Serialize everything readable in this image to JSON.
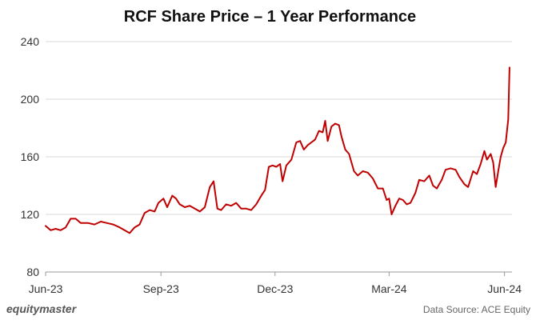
{
  "chart_data": {
    "type": "line",
    "title": "RCF Share Price – 1 Year Performance",
    "xlabel": "",
    "ylabel": "",
    "ylim": [
      80,
      240
    ],
    "yticks": [
      80,
      120,
      160,
      200,
      240
    ],
    "xlim": [
      "2023-06-01",
      "2024-06-07"
    ],
    "xticks": [
      {
        "label": "Jun-23",
        "date": "2023-06-01"
      },
      {
        "label": "Sep-23",
        "date": "2023-09-01"
      },
      {
        "label": "Dec-23",
        "date": "2023-12-01"
      },
      {
        "label": "Mar-24",
        "date": "2024-03-01"
      },
      {
        "label": "Jun-24",
        "date": "2024-06-01"
      }
    ],
    "grid": true,
    "line_color": "#c00000",
    "series": [
      {
        "points": [
          [
            "2023-06-01",
            112
          ],
          [
            "2023-06-05",
            109
          ],
          [
            "2023-06-09",
            110
          ],
          [
            "2023-06-13",
            109
          ],
          [
            "2023-06-17",
            111
          ],
          [
            "2023-06-21",
            117
          ],
          [
            "2023-06-25",
            117
          ],
          [
            "2023-06-29",
            114
          ],
          [
            "2023-07-05",
            114
          ],
          [
            "2023-07-10",
            113
          ],
          [
            "2023-07-15",
            115
          ],
          [
            "2023-07-20",
            114
          ],
          [
            "2023-07-25",
            113
          ],
          [
            "2023-07-30",
            111
          ],
          [
            "2023-08-03",
            109
          ],
          [
            "2023-08-07",
            107
          ],
          [
            "2023-08-11",
            111
          ],
          [
            "2023-08-15",
            113
          ],
          [
            "2023-08-19",
            121
          ],
          [
            "2023-08-23",
            123
          ],
          [
            "2023-08-27",
            122
          ],
          [
            "2023-08-30",
            128
          ],
          [
            "2023-09-03",
            131
          ],
          [
            "2023-09-06",
            125
          ],
          [
            "2023-09-10",
            133
          ],
          [
            "2023-09-13",
            131
          ],
          [
            "2023-09-16",
            127
          ],
          [
            "2023-09-20",
            125
          ],
          [
            "2023-09-24",
            126
          ],
          [
            "2023-09-28",
            124
          ],
          [
            "2023-10-02",
            122
          ],
          [
            "2023-10-06",
            125
          ],
          [
            "2023-10-10",
            139
          ],
          [
            "2023-10-13",
            143
          ],
          [
            "2023-10-16",
            124
          ],
          [
            "2023-10-19",
            123
          ],
          [
            "2023-10-23",
            127
          ],
          [
            "2023-10-27",
            126
          ],
          [
            "2023-10-31",
            128
          ],
          [
            "2023-11-04",
            124
          ],
          [
            "2023-11-08",
            124
          ],
          [
            "2023-11-12",
            123
          ],
          [
            "2023-11-16",
            127
          ],
          [
            "2023-11-20",
            133
          ],
          [
            "2023-11-23",
            137
          ],
          [
            "2023-11-26",
            153
          ],
          [
            "2023-11-29",
            154
          ],
          [
            "2023-12-02",
            153
          ],
          [
            "2023-12-05",
            155
          ],
          [
            "2023-12-07",
            143
          ],
          [
            "2023-12-10",
            154
          ],
          [
            "2023-12-14",
            158
          ],
          [
            "2023-12-18",
            170
          ],
          [
            "2023-12-21",
            171
          ],
          [
            "2023-12-24",
            165
          ],
          [
            "2023-12-27",
            168
          ],
          [
            "2023-12-30",
            170
          ],
          [
            "2024-01-02",
            172
          ],
          [
            "2024-01-05",
            178
          ],
          [
            "2024-01-08",
            177
          ],
          [
            "2024-01-10",
            185
          ],
          [
            "2024-01-12",
            171
          ],
          [
            "2024-01-15",
            181
          ],
          [
            "2024-01-18",
            183
          ],
          [
            "2024-01-21",
            182
          ],
          [
            "2024-01-23",
            174
          ],
          [
            "2024-01-26",
            165
          ],
          [
            "2024-01-29",
            162
          ],
          [
            "2024-02-02",
            150
          ],
          [
            "2024-02-05",
            147
          ],
          [
            "2024-02-09",
            150
          ],
          [
            "2024-02-13",
            149
          ],
          [
            "2024-02-17",
            145
          ],
          [
            "2024-02-21",
            138
          ],
          [
            "2024-02-25",
            138
          ],
          [
            "2024-02-28",
            130
          ],
          [
            "2024-03-01",
            131
          ],
          [
            "2024-03-03",
            120
          ],
          [
            "2024-03-06",
            126
          ],
          [
            "2024-03-09",
            131
          ],
          [
            "2024-03-12",
            130
          ],
          [
            "2024-03-15",
            127
          ],
          [
            "2024-03-18",
            128
          ],
          [
            "2024-03-22",
            135
          ],
          [
            "2024-03-25",
            144
          ],
          [
            "2024-03-29",
            143
          ],
          [
            "2024-04-02",
            147
          ],
          [
            "2024-04-05",
            140
          ],
          [
            "2024-04-08",
            138
          ],
          [
            "2024-04-12",
            144
          ],
          [
            "2024-04-15",
            151
          ],
          [
            "2024-04-19",
            152
          ],
          [
            "2024-04-23",
            151
          ],
          [
            "2024-04-26",
            146
          ],
          [
            "2024-04-30",
            141
          ],
          [
            "2024-05-03",
            139
          ],
          [
            "2024-05-07",
            150
          ],
          [
            "2024-05-10",
            148
          ],
          [
            "2024-05-13",
            155
          ],
          [
            "2024-05-16",
            164
          ],
          [
            "2024-05-18",
            158
          ],
          [
            "2024-05-21",
            162
          ],
          [
            "2024-05-23",
            156
          ],
          [
            "2024-05-25",
            139
          ],
          [
            "2024-05-27",
            150
          ],
          [
            "2024-05-29",
            160
          ],
          [
            "2024-05-31",
            166
          ],
          [
            "2024-06-02",
            170
          ],
          [
            "2024-06-04",
            186
          ],
          [
            "2024-06-05",
            222
          ]
        ]
      }
    ]
  },
  "footer": {
    "logo_text": "equitymaster",
    "source": "Data Source: ACE Equity"
  }
}
